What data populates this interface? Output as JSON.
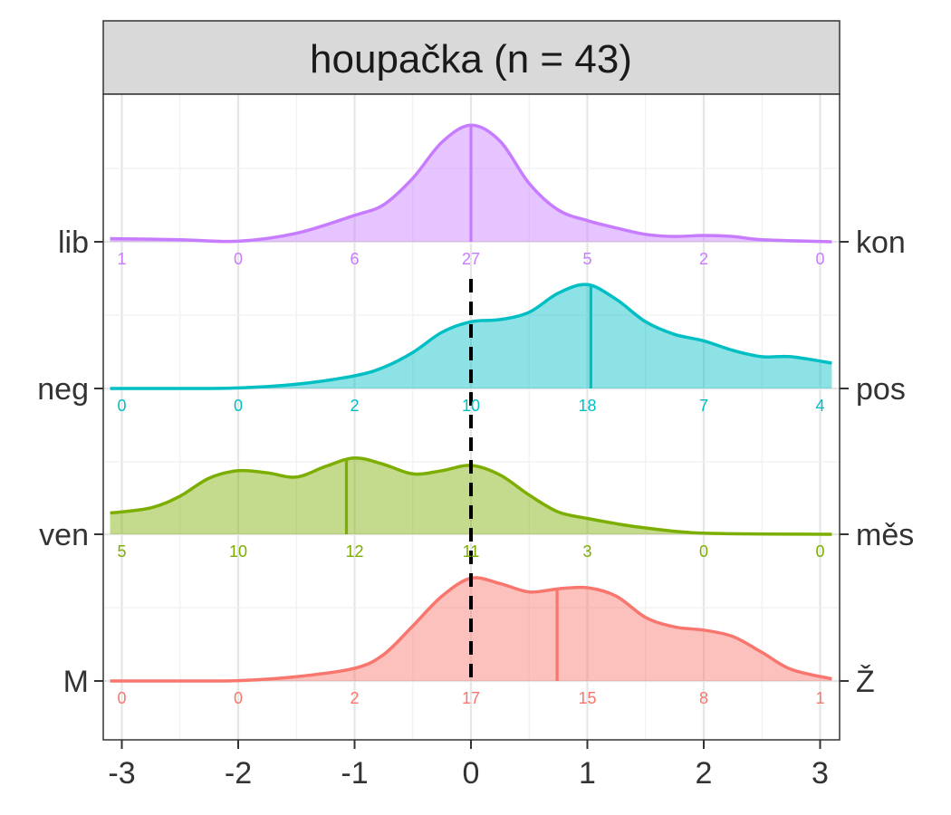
{
  "chart_data": {
    "type": "ridgeline-density",
    "title": "houpačka (n = 43)",
    "xlabel": "",
    "ylabel": "",
    "xlim": [
      -3.1,
      3.1
    ],
    "x_ticks": [
      -3,
      -2,
      -1,
      0,
      1,
      2,
      3
    ],
    "x_tick_labels": [
      "-3",
      "-2",
      "-1",
      "0",
      "1",
      "2",
      "3"
    ],
    "grid": true,
    "reference_line": {
      "x": 0,
      "style": "dashed",
      "color": "#000000"
    },
    "count_positions": [
      -3,
      -2,
      -1,
      0,
      1,
      2,
      3
    ],
    "series": [
      {
        "left_label": "M",
        "right_label": "Ž",
        "color": "#F8766D",
        "counts": [
          0,
          0,
          2,
          17,
          15,
          8,
          1
        ],
        "mean": 0.74,
        "density": [
          [
            -3.1,
            0
          ],
          [
            -2.5,
            0
          ],
          [
            -2,
            0.003
          ],
          [
            -1.5,
            0.04
          ],
          [
            -1,
            0.12
          ],
          [
            -0.75,
            0.25
          ],
          [
            -0.5,
            0.52
          ],
          [
            -0.25,
            0.8
          ],
          [
            0,
            0.97
          ],
          [
            0.25,
            0.92
          ],
          [
            0.5,
            0.84
          ],
          [
            0.75,
            0.87
          ],
          [
            1,
            0.88
          ],
          [
            1.25,
            0.8
          ],
          [
            1.5,
            0.6
          ],
          [
            1.75,
            0.51
          ],
          [
            2,
            0.48
          ],
          [
            2.25,
            0.42
          ],
          [
            2.5,
            0.27
          ],
          [
            2.75,
            0.11
          ],
          [
            3.1,
            0.02
          ]
        ]
      },
      {
        "left_label": "ven",
        "right_label": "měs",
        "color": "#7CAE00",
        "counts": [
          5,
          10,
          12,
          11,
          3,
          0,
          0
        ],
        "mean": -1.07,
        "density": [
          [
            -3.1,
            0.2
          ],
          [
            -2.75,
            0.25
          ],
          [
            -2.5,
            0.36
          ],
          [
            -2.25,
            0.53
          ],
          [
            -2,
            0.6
          ],
          [
            -1.75,
            0.58
          ],
          [
            -1.5,
            0.54
          ],
          [
            -1.25,
            0.64
          ],
          [
            -1,
            0.72
          ],
          [
            -0.75,
            0.66
          ],
          [
            -0.5,
            0.57
          ],
          [
            -0.25,
            0.6
          ],
          [
            0,
            0.65
          ],
          [
            0.25,
            0.56
          ],
          [
            0.5,
            0.37
          ],
          [
            0.75,
            0.21
          ],
          [
            1,
            0.15
          ],
          [
            1.25,
            0.1
          ],
          [
            1.5,
            0.06
          ],
          [
            2,
            0.01
          ],
          [
            3.1,
            0
          ]
        ]
      },
      {
        "left_label": "neg",
        "right_label": "pos",
        "color": "#00BFC4",
        "counts": [
          0,
          0,
          2,
          10,
          18,
          7,
          4
        ],
        "mean": 1.03,
        "density": [
          [
            -3.1,
            0
          ],
          [
            -2.5,
            0
          ],
          [
            -2,
            0.005
          ],
          [
            -1.5,
            0.04
          ],
          [
            -1,
            0.12
          ],
          [
            -0.75,
            0.2
          ],
          [
            -0.5,
            0.34
          ],
          [
            -0.25,
            0.53
          ],
          [
            0,
            0.63
          ],
          [
            0.25,
            0.65
          ],
          [
            0.5,
            0.72
          ],
          [
            0.75,
            0.9
          ],
          [
            1,
            0.98
          ],
          [
            1.25,
            0.84
          ],
          [
            1.5,
            0.63
          ],
          [
            1.75,
            0.51
          ],
          [
            2,
            0.45
          ],
          [
            2.25,
            0.36
          ],
          [
            2.5,
            0.3
          ],
          [
            2.75,
            0.3
          ],
          [
            3.1,
            0.24
          ]
        ]
      },
      {
        "left_label": "lib",
        "right_label": "kon",
        "color": "#C77CFF",
        "counts": [
          1,
          0,
          6,
          27,
          5,
          2,
          0
        ],
        "mean": 0,
        "density": [
          [
            -3.1,
            0.03
          ],
          [
            -2.5,
            0.02
          ],
          [
            -2,
            0.005
          ],
          [
            -1.5,
            0.08
          ],
          [
            -1,
            0.25
          ],
          [
            -0.75,
            0.35
          ],
          [
            -0.5,
            0.6
          ],
          [
            -0.25,
            0.94
          ],
          [
            0,
            1.1
          ],
          [
            0.25,
            0.95
          ],
          [
            0.5,
            0.55
          ],
          [
            0.75,
            0.3
          ],
          [
            1,
            0.2
          ],
          [
            1.25,
            0.13
          ],
          [
            1.5,
            0.07
          ],
          [
            1.75,
            0.05
          ],
          [
            2,
            0.06
          ],
          [
            2.25,
            0.05
          ],
          [
            2.5,
            0.02
          ],
          [
            3.1,
            0
          ]
        ]
      }
    ]
  }
}
